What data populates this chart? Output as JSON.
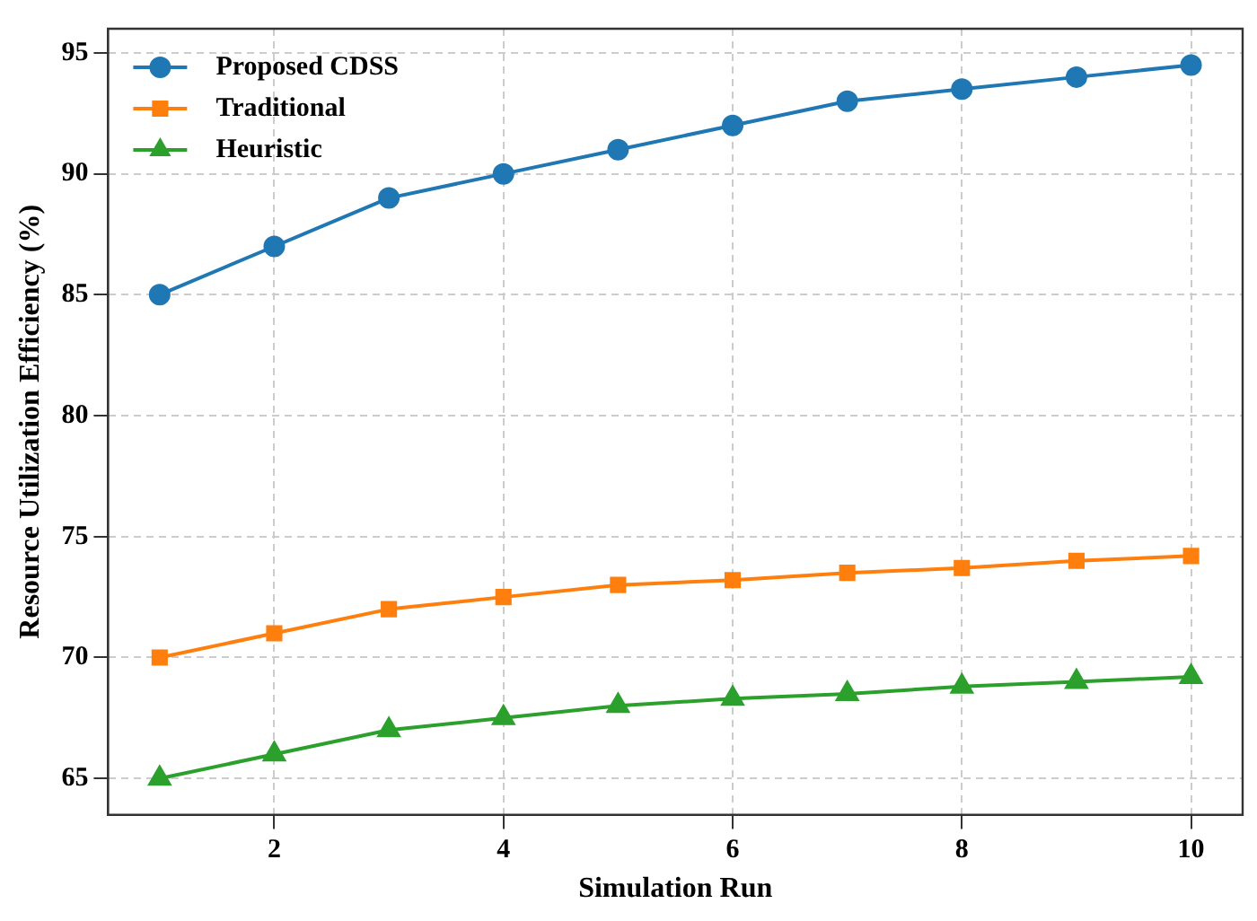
{
  "chart_data": {
    "type": "line",
    "xlabel": "Simulation Run",
    "ylabel": "Resource Utilization Efficiency (%)",
    "x": [
      1,
      2,
      3,
      4,
      5,
      6,
      7,
      8,
      9,
      10
    ],
    "series": [
      {
        "name": "Proposed CDSS",
        "color": "#1f77b4",
        "marker": "circle",
        "values": [
          85,
          87,
          89,
          90,
          91,
          92,
          93,
          93.5,
          94,
          94.5
        ]
      },
      {
        "name": "Traditional",
        "color": "#ff7f0e",
        "marker": "square",
        "values": [
          70,
          71,
          72,
          72.5,
          73,
          73.2,
          73.5,
          73.7,
          74,
          74.2
        ]
      },
      {
        "name": "Heuristic",
        "color": "#2ca02c",
        "marker": "triangle",
        "values": [
          65,
          66,
          67,
          67.5,
          68,
          68.3,
          68.5,
          68.8,
          69,
          69.2
        ]
      }
    ],
    "xlim": [
      0.55,
      10.45
    ],
    "xticks": [
      2,
      4,
      6,
      8,
      10
    ],
    "ylim": [
      63.5,
      96
    ],
    "yticks": [
      65,
      70,
      75,
      80,
      85,
      90,
      95
    ],
    "grid": true,
    "legend": "top left",
    "line_style": "solid"
  }
}
